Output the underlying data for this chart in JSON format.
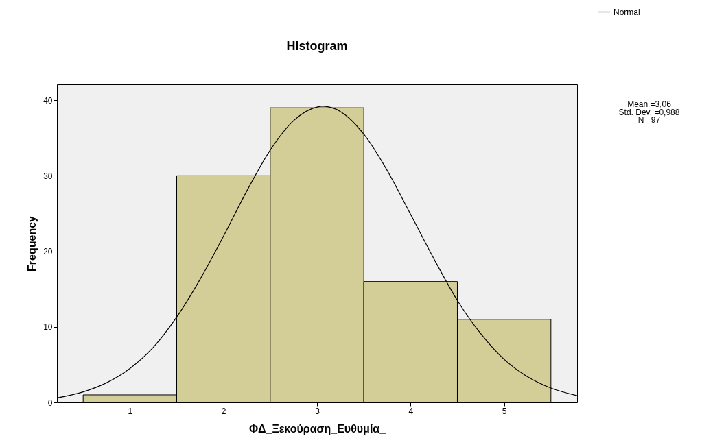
{
  "chart_data": {
    "type": "histogram",
    "title": "Histogram",
    "xlabel": "ΦΔ_Ξεκούραση_Ευθυμία_",
    "ylabel": "Frequency",
    "bins": [
      0.5,
      1.5,
      2.5,
      3.5,
      4.5,
      5.5
    ],
    "values": [
      1,
      30,
      39,
      16,
      11
    ],
    "color": "#d3ce97",
    "xlim": [
      0.22,
      5.78
    ],
    "ylim": [
      0,
      42.1
    ],
    "xticks": [
      1,
      2,
      3,
      4,
      5
    ],
    "yticks": [
      0,
      10,
      20,
      30,
      40
    ],
    "series": [
      {
        "name": "Normal",
        "type": "line",
        "color": "#000000",
        "x": [
          0.22,
          0.5,
          0.75,
          1,
          1.25,
          1.5,
          1.75,
          2,
          2.25,
          2.5,
          2.75,
          3,
          3.06,
          3.25,
          3.5,
          3.75,
          4,
          4.25,
          4.5,
          4.75,
          5,
          5.25,
          5.5,
          5.78
        ],
        "values": [
          0.6,
          1.4,
          2.6,
          4.5,
          7.3,
          11.3,
          16.3,
          22.0,
          28.0,
          33.4,
          37.3,
          39.1,
          39.2,
          38.5,
          35.5,
          30.7,
          24.9,
          19.0,
          13.5,
          9.1,
          5.7,
          3.4,
          1.9,
          0.9
        ]
      }
    ],
    "legend": "top right",
    "annotations": [
      "Mean =3,06",
      "Std. Dev. =0,988",
      "N =97"
    ]
  }
}
